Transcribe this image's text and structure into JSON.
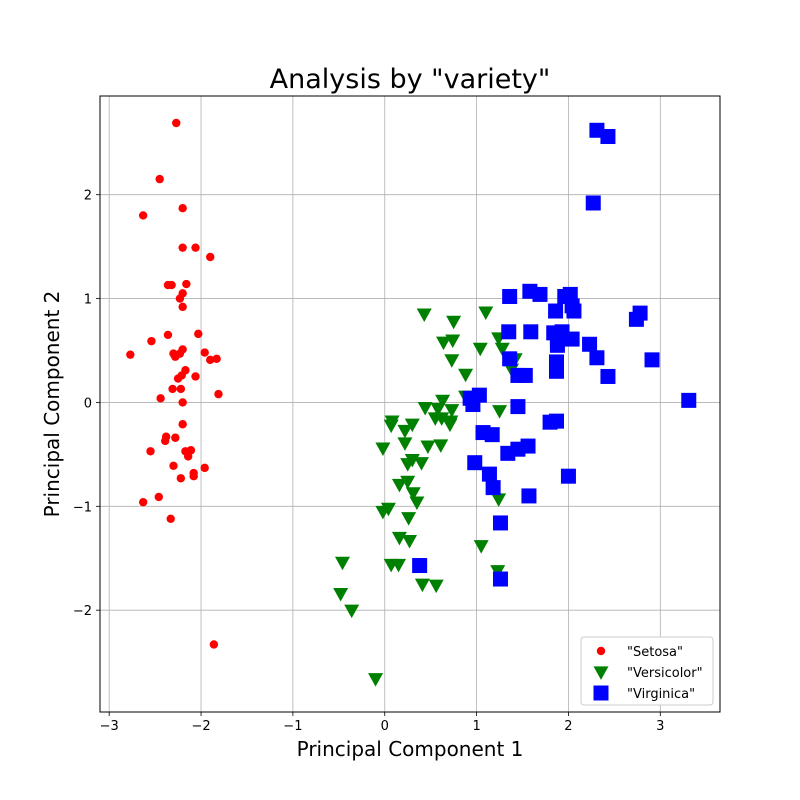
{
  "chart_data": {
    "type": "scatter",
    "title": "Analysis by \"variety\"",
    "xlabel": "Principal Component 1",
    "ylabel": "Principal Component 2",
    "xlim": [
      -3.1,
      3.65
    ],
    "ylim": [
      -2.98,
      2.95
    ],
    "xticks": [
      -3,
      -2,
      -1,
      0,
      1,
      2,
      3
    ],
    "yticks": [
      -2,
      -1,
      0,
      1,
      2
    ],
    "grid": true,
    "legend_position": "lower-right",
    "series": [
      {
        "name": "\"Setosa\"",
        "marker": "circle",
        "color": "#ff0000",
        "points": [
          [
            -2.27,
            2.69
          ],
          [
            -2.45,
            2.15
          ],
          [
            -2.63,
            1.8
          ],
          [
            -2.2,
            1.87
          ],
          [
            -2.2,
            1.49
          ],
          [
            -2.06,
            1.49
          ],
          [
            -1.9,
            1.4
          ],
          [
            -2.36,
            1.13
          ],
          [
            -2.32,
            1.13
          ],
          [
            -2.16,
            1.14
          ],
          [
            -2.2,
            1.05
          ],
          [
            -2.23,
            1.0
          ],
          [
            -2.2,
            0.92
          ],
          [
            -2.36,
            0.65
          ],
          [
            -2.03,
            0.66
          ],
          [
            -2.54,
            0.59
          ],
          [
            -2.2,
            0.51
          ],
          [
            -2.23,
            0.47
          ],
          [
            -2.3,
            0.47
          ],
          [
            -1.96,
            0.48
          ],
          [
            -2.28,
            0.44
          ],
          [
            -1.9,
            0.41
          ],
          [
            -1.83,
            0.42
          ],
          [
            -2.77,
            0.46
          ],
          [
            -2.17,
            0.31
          ],
          [
            -2.21,
            0.26
          ],
          [
            -2.06,
            0.25
          ],
          [
            -2.25,
            0.23
          ],
          [
            -2.31,
            0.13
          ],
          [
            -2.22,
            0.13
          ],
          [
            -2.44,
            0.04
          ],
          [
            -1.81,
            0.08
          ],
          [
            -2.2,
            0.0
          ],
          [
            -2.2,
            -0.21
          ],
          [
            -2.38,
            -0.33
          ],
          [
            -2.28,
            -0.34
          ],
          [
            -2.39,
            -0.37
          ],
          [
            -2.55,
            -0.47
          ],
          [
            -2.17,
            -0.47
          ],
          [
            -2.11,
            -0.46
          ],
          [
            -2.14,
            -0.52
          ],
          [
            -2.3,
            -0.61
          ],
          [
            -1.96,
            -0.63
          ],
          [
            -2.08,
            -0.68
          ],
          [
            -2.22,
            -0.73
          ],
          [
            -2.08,
            -0.71
          ],
          [
            -2.46,
            -0.91
          ],
          [
            -2.63,
            -0.96
          ],
          [
            -2.33,
            -1.12
          ],
          [
            -1.86,
            -2.33
          ]
        ]
      },
      {
        "name": "\"Versicolor\"",
        "marker": "triangle-down",
        "color": "#008000",
        "points": [
          [
            0.43,
            0.85
          ],
          [
            1.1,
            0.87
          ],
          [
            0.75,
            0.78
          ],
          [
            1.24,
            0.62
          ],
          [
            0.74,
            0.6
          ],
          [
            0.64,
            0.58
          ],
          [
            1.28,
            0.52
          ],
          [
            1.04,
            0.52
          ],
          [
            0.73,
            0.41
          ],
          [
            0.88,
            0.27
          ],
          [
            1.38,
            0.32
          ],
          [
            1.42,
            0.42
          ],
          [
            0.63,
            0.02
          ],
          [
            0.88,
            0.06
          ],
          [
            0.44,
            -0.05
          ],
          [
            0.58,
            -0.06
          ],
          [
            0.73,
            -0.07
          ],
          [
            1.25,
            -0.08
          ],
          [
            0.55,
            -0.15
          ],
          [
            0.62,
            -0.15
          ],
          [
            0.72,
            -0.18
          ],
          [
            0.71,
            -0.21
          ],
          [
            0.08,
            -0.18
          ],
          [
            0.07,
            -0.22
          ],
          [
            0.22,
            -0.27
          ],
          [
            0.3,
            -0.21
          ],
          [
            0.22,
            -0.39
          ],
          [
            0.61,
            -0.41
          ],
          [
            0.47,
            -0.42
          ],
          [
            -0.02,
            -0.44
          ],
          [
            0.3,
            -0.55
          ],
          [
            0.25,
            -0.59
          ],
          [
            0.4,
            -0.58
          ],
          [
            1.14,
            -0.68
          ],
          [
            0.16,
            -0.79
          ],
          [
            0.25,
            -0.76
          ],
          [
            0.31,
            -0.87
          ],
          [
            1.24,
            -0.93
          ],
          [
            0.35,
            -0.96
          ],
          [
            -0.02,
            -1.05
          ],
          [
            0.04,
            -1.02
          ],
          [
            0.26,
            -1.11
          ],
          [
            0.16,
            -1.3
          ],
          [
            0.27,
            -1.33
          ],
          [
            1.05,
            -1.38
          ],
          [
            -0.46,
            -1.54
          ],
          [
            0.07,
            -1.56
          ],
          [
            0.15,
            -1.56
          ],
          [
            1.23,
            -1.62
          ],
          [
            0.41,
            -1.75
          ],
          [
            0.56,
            -1.76
          ],
          [
            -0.48,
            -1.84
          ],
          [
            -0.36,
            -2.0
          ],
          [
            -0.1,
            -2.66
          ]
        ]
      },
      {
        "name": "\"Virginica\"",
        "marker": "square",
        "color": "#0000ff",
        "points": [
          [
            2.31,
            2.62
          ],
          [
            2.43,
            2.56
          ],
          [
            2.27,
            1.92
          ],
          [
            1.58,
            1.07
          ],
          [
            1.69,
            1.04
          ],
          [
            1.96,
            1.02
          ],
          [
            2.02,
            1.04
          ],
          [
            1.36,
            1.02
          ],
          [
            2.04,
            0.93
          ],
          [
            2.06,
            0.88
          ],
          [
            1.86,
            0.88
          ],
          [
            2.78,
            0.86
          ],
          [
            2.74,
            0.8
          ],
          [
            1.35,
            0.68
          ],
          [
            1.59,
            0.68
          ],
          [
            1.84,
            0.67
          ],
          [
            1.93,
            0.68
          ],
          [
            1.88,
            0.62
          ],
          [
            2.04,
            0.61
          ],
          [
            1.88,
            0.55
          ],
          [
            2.23,
            0.56
          ],
          [
            2.31,
            0.43
          ],
          [
            2.91,
            0.41
          ],
          [
            1.36,
            0.42
          ],
          [
            1.87,
            0.39
          ],
          [
            1.87,
            0.3
          ],
          [
            1.45,
            0.26
          ],
          [
            1.53,
            0.26
          ],
          [
            2.43,
            0.25
          ],
          [
            0.93,
            0.04
          ],
          [
            1.03,
            0.07
          ],
          [
            0.96,
            -0.02
          ],
          [
            1.45,
            -0.04
          ],
          [
            3.31,
            0.02
          ],
          [
            1.8,
            -0.19
          ],
          [
            1.87,
            -0.18
          ],
          [
            1.07,
            -0.29
          ],
          [
            1.17,
            -0.31
          ],
          [
            1.56,
            -0.42
          ],
          [
            1.45,
            -0.45
          ],
          [
            1.34,
            -0.49
          ],
          [
            0.98,
            -0.58
          ],
          [
            1.14,
            -0.69
          ],
          [
            2.0,
            -0.71
          ],
          [
            1.18,
            -0.82
          ],
          [
            1.57,
            -0.9
          ],
          [
            1.26,
            -1.16
          ],
          [
            0.38,
            -1.57
          ],
          [
            1.26,
            -1.7
          ]
        ]
      }
    ]
  }
}
